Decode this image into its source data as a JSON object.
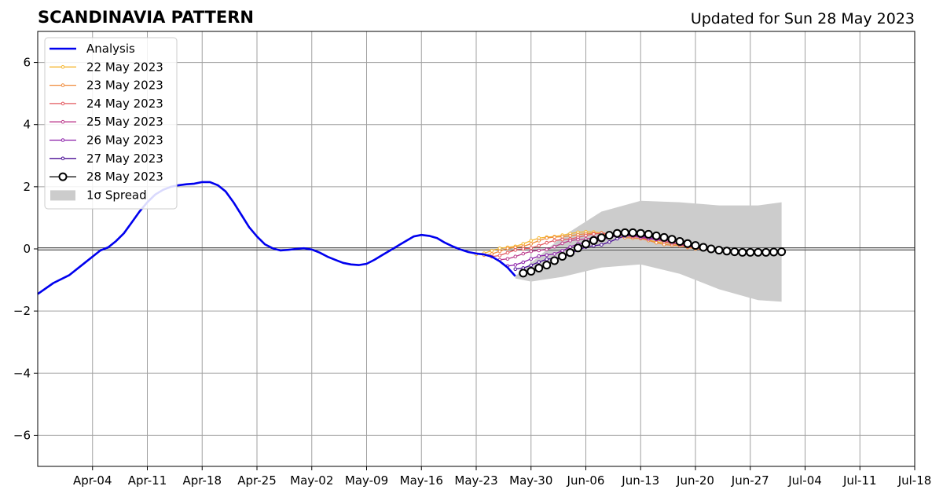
{
  "header": {
    "title": "SCANDINAVIA PATTERN",
    "updated": "Updated for Sun 28 May 2023"
  },
  "chart_data": {
    "type": "line",
    "title": "SCANDINAVIA PATTERN",
    "xlabel": "",
    "ylabel": "",
    "x_axis_type": "date",
    "xlim": [
      "2023-03-28",
      "2023-07-18"
    ],
    "ylim": [
      -7,
      7
    ],
    "x_ticks": [
      {
        "date": "2023-04-04",
        "label": "Apr-04"
      },
      {
        "date": "2023-04-11",
        "label": "Apr-11"
      },
      {
        "date": "2023-04-18",
        "label": "Apr-18"
      },
      {
        "date": "2023-04-25",
        "label": "Apr-25"
      },
      {
        "date": "2023-05-02",
        "label": "May-02"
      },
      {
        "date": "2023-05-09",
        "label": "May-09"
      },
      {
        "date": "2023-05-16",
        "label": "May-16"
      },
      {
        "date": "2023-05-23",
        "label": "May-23"
      },
      {
        "date": "2023-05-30",
        "label": "May-30"
      },
      {
        "date": "2023-06-06",
        "label": "Jun-06"
      },
      {
        "date": "2023-06-13",
        "label": "Jun-13"
      },
      {
        "date": "2023-06-20",
        "label": "Jun-20"
      },
      {
        "date": "2023-06-27",
        "label": "Jun-27"
      },
      {
        "date": "2023-07-04",
        "label": "Jul-04"
      },
      {
        "date": "2023-07-11",
        "label": "Jul-11"
      },
      {
        "date": "2023-07-18",
        "label": "Jul-18"
      }
    ],
    "y_ticks": [
      {
        "value": 6,
        "label": "6"
      },
      {
        "value": 4,
        "label": "4"
      },
      {
        "value": 2,
        "label": "2"
      },
      {
        "value": 0,
        "label": "0"
      },
      {
        "value": -2,
        "label": "−2"
      },
      {
        "value": -4,
        "label": "−4"
      },
      {
        "value": -6,
        "label": "−6"
      }
    ],
    "grid": true,
    "zero_line": true,
    "legend_position": "top-left",
    "analysis": {
      "name": "Analysis",
      "color": "#0000ee",
      "points": [
        [
          "2023-03-28",
          -1.45
        ],
        [
          "2023-03-30",
          -1.1
        ],
        [
          "2023-04-01",
          -0.85
        ],
        [
          "2023-04-03",
          -0.45
        ],
        [
          "2023-04-05",
          -0.05
        ],
        [
          "2023-04-06",
          0.05
        ],
        [
          "2023-04-07",
          0.25
        ],
        [
          "2023-04-08",
          0.5
        ],
        [
          "2023-04-09",
          0.85
        ],
        [
          "2023-04-10",
          1.2
        ],
        [
          "2023-04-11",
          1.5
        ],
        [
          "2023-04-12",
          1.75
        ],
        [
          "2023-04-13",
          1.9
        ],
        [
          "2023-04-14",
          2.0
        ],
        [
          "2023-04-15",
          2.05
        ],
        [
          "2023-04-16",
          2.08
        ],
        [
          "2023-04-17",
          2.1
        ],
        [
          "2023-04-18",
          2.15
        ],
        [
          "2023-04-19",
          2.15
        ],
        [
          "2023-04-20",
          2.05
        ],
        [
          "2023-04-21",
          1.85
        ],
        [
          "2023-04-22",
          1.5
        ],
        [
          "2023-04-23",
          1.1
        ],
        [
          "2023-04-24",
          0.7
        ],
        [
          "2023-04-25",
          0.4
        ],
        [
          "2023-04-26",
          0.15
        ],
        [
          "2023-04-27",
          0.02
        ],
        [
          "2023-04-28",
          -0.05
        ],
        [
          "2023-04-29",
          -0.03
        ],
        [
          "2023-04-30",
          0.0
        ],
        [
          "2023-05-01",
          0.02
        ],
        [
          "2023-05-02",
          -0.02
        ],
        [
          "2023-05-03",
          -0.12
        ],
        [
          "2023-05-04",
          -0.25
        ],
        [
          "2023-05-05",
          -0.35
        ],
        [
          "2023-05-06",
          -0.45
        ],
        [
          "2023-05-07",
          -0.5
        ],
        [
          "2023-05-08",
          -0.52
        ],
        [
          "2023-05-09",
          -0.48
        ],
        [
          "2023-05-10",
          -0.35
        ],
        [
          "2023-05-11",
          -0.2
        ],
        [
          "2023-05-12",
          -0.05
        ],
        [
          "2023-05-13",
          0.1
        ],
        [
          "2023-05-14",
          0.25
        ],
        [
          "2023-05-15",
          0.4
        ],
        [
          "2023-05-16",
          0.45
        ],
        [
          "2023-05-17",
          0.42
        ],
        [
          "2023-05-18",
          0.35
        ],
        [
          "2023-05-19",
          0.2
        ],
        [
          "2023-05-20",
          0.08
        ],
        [
          "2023-05-21",
          -0.02
        ],
        [
          "2023-05-22",
          -0.1
        ],
        [
          "2023-05-23",
          -0.15
        ],
        [
          "2023-05-24",
          -0.18
        ],
        [
          "2023-05-25",
          -0.25
        ],
        [
          "2023-05-26",
          -0.4
        ],
        [
          "2023-05-27",
          -0.6
        ],
        [
          "2023-05-28",
          -0.88
        ]
      ]
    },
    "series": [
      {
        "name": "22 May 2023",
        "color": "#f5b731",
        "points": [
          [
            "2023-05-23",
            -0.17
          ],
          [
            "2023-05-27",
            0.05
          ],
          [
            "2023-06-01",
            0.38
          ],
          [
            "2023-06-06",
            0.55
          ],
          [
            "2023-06-11",
            0.45
          ],
          [
            "2023-06-16",
            0.2
          ],
          [
            "2023-06-20",
            0.02
          ]
        ]
      },
      {
        "name": "23 May 2023",
        "color": "#f08a3a",
        "points": [
          [
            "2023-05-24",
            -0.2
          ],
          [
            "2023-05-28",
            0.05
          ],
          [
            "2023-06-02",
            0.38
          ],
          [
            "2023-06-07",
            0.5
          ],
          [
            "2023-06-12",
            0.35
          ],
          [
            "2023-06-17",
            0.12
          ],
          [
            "2023-06-21",
            -0.02
          ]
        ]
      },
      {
        "name": "24 May 2023",
        "color": "#e3585f",
        "points": [
          [
            "2023-05-25",
            -0.25
          ],
          [
            "2023-05-29",
            0.0
          ],
          [
            "2023-06-03",
            0.3
          ],
          [
            "2023-06-08",
            0.5
          ],
          [
            "2023-06-13",
            0.38
          ],
          [
            "2023-06-18",
            0.15
          ],
          [
            "2023-06-22",
            -0.05
          ]
        ]
      },
      {
        "name": "25 May 2023",
        "color": "#bb3a8c",
        "points": [
          [
            "2023-05-26",
            -0.35
          ],
          [
            "2023-05-31",
            -0.05
          ],
          [
            "2023-06-05",
            0.3
          ],
          [
            "2023-06-10",
            0.48
          ],
          [
            "2023-06-15",
            0.3
          ],
          [
            "2023-06-20",
            0.05
          ],
          [
            "2023-06-23",
            -0.08
          ]
        ]
      },
      {
        "name": "26 May 2023",
        "color": "#8b1fa9",
        "points": [
          [
            "2023-05-27",
            -0.55
          ],
          [
            "2023-06-01",
            -0.2
          ],
          [
            "2023-06-06",
            0.2
          ],
          [
            "2023-06-11",
            0.45
          ],
          [
            "2023-06-16",
            0.3
          ],
          [
            "2023-06-21",
            0.02
          ],
          [
            "2023-06-24",
            -0.08
          ]
        ]
      },
      {
        "name": "27 May 2023",
        "color": "#4b0f96",
        "points": [
          [
            "2023-05-28",
            -0.65
          ],
          [
            "2023-06-02",
            -0.3
          ],
          [
            "2023-06-07",
            0.1
          ],
          [
            "2023-06-12",
            0.45
          ],
          [
            "2023-06-17",
            0.3
          ],
          [
            "2023-06-22",
            0.0
          ],
          [
            "2023-06-25",
            -0.1
          ]
        ]
      }
    ],
    "latest_forecast": {
      "name": "28 May 2023",
      "color": "#000000",
      "values_from": "2023-05-29",
      "values": [
        -0.78,
        -0.72,
        -0.62,
        -0.52,
        -0.38,
        -0.24,
        -0.12,
        0.03,
        0.16,
        0.27,
        0.36,
        0.44,
        0.5,
        0.52,
        0.52,
        0.5,
        0.47,
        0.42,
        0.37,
        0.31,
        0.24,
        0.17,
        0.11,
        0.05,
        0.0,
        -0.04,
        -0.07,
        -0.09,
        -0.11,
        -0.11,
        -0.11,
        -0.11,
        -0.1,
        -0.09
      ]
    },
    "spread": {
      "name": "1σ Spread",
      "color": "#cccccc",
      "upper_points": [
        [
          "2023-05-28",
          -0.88
        ],
        [
          "2023-06-03",
          0.4
        ],
        [
          "2023-06-08",
          1.2
        ],
        [
          "2023-06-13",
          1.55
        ],
        [
          "2023-06-18",
          1.5
        ],
        [
          "2023-06-23",
          1.4
        ],
        [
          "2023-06-28",
          1.4
        ],
        [
          "2023-07-01",
          1.5
        ]
      ],
      "lower_points": [
        [
          "2023-05-28",
          -0.95
        ],
        [
          "2023-05-30",
          -1.05
        ],
        [
          "2023-06-03",
          -0.9
        ],
        [
          "2023-06-08",
          -0.6
        ],
        [
          "2023-06-13",
          -0.5
        ],
        [
          "2023-06-18",
          -0.8
        ],
        [
          "2023-06-23",
          -1.3
        ],
        [
          "2023-06-28",
          -1.65
        ],
        [
          "2023-07-01",
          -1.7
        ]
      ]
    }
  }
}
